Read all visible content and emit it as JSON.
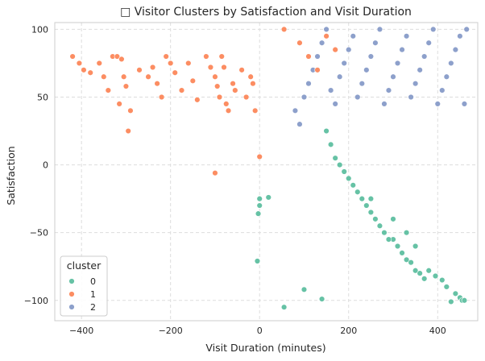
{
  "chart_data": {
    "type": "scatter",
    "title": "□ Visitor Clusters by Satisfaction and Visit Duration",
    "xlabel": "Visit Duration (minutes)",
    "ylabel": "Satisfaction",
    "xlim": [
      -460,
      490
    ],
    "ylim": [
      -115,
      105
    ],
    "xticks": [
      -400,
      -200,
      0,
      200,
      400
    ],
    "yticks": [
      -100,
      -50,
      0,
      50,
      100
    ],
    "grid": true,
    "legend": {
      "title": "cluster",
      "position": "bottom-left"
    },
    "series": [
      {
        "name": "0",
        "color": "#66c2a5",
        "points": [
          [
            -5,
            -71
          ],
          [
            55,
            -105
          ],
          [
            100,
            -92
          ],
          [
            140,
            -99
          ],
          [
            0,
            -25
          ],
          [
            0,
            -30
          ],
          [
            -3,
            -36
          ],
          [
            20,
            -24
          ],
          [
            380,
            -78
          ],
          [
            395,
            -82
          ],
          [
            410,
            -85
          ],
          [
            420,
            -90
          ],
          [
            440,
            -95
          ],
          [
            450,
            -98
          ],
          [
            455,
            -100
          ],
          [
            460,
            -100
          ],
          [
            430,
            -101
          ],
          [
            300,
            -55
          ],
          [
            310,
            -60
          ],
          [
            320,
            -65
          ],
          [
            330,
            -70
          ],
          [
            340,
            -72
          ],
          [
            350,
            -78
          ],
          [
            360,
            -80
          ],
          [
            370,
            -84
          ],
          [
            280,
            -50
          ],
          [
            290,
            -55
          ],
          [
            270,
            -45
          ],
          [
            260,
            -40
          ],
          [
            250,
            -35
          ],
          [
            240,
            -30
          ],
          [
            230,
            -25
          ],
          [
            220,
            -20
          ],
          [
            210,
            -15
          ],
          [
            200,
            -10
          ],
          [
            190,
            -5
          ],
          [
            180,
            0
          ],
          [
            170,
            5
          ],
          [
            160,
            15
          ],
          [
            150,
            25
          ],
          [
            250,
            -25
          ],
          [
            300,
            -40
          ],
          [
            350,
            -60
          ],
          [
            330,
            -50
          ]
        ]
      },
      {
        "name": "1",
        "color": "#fc8d62",
        "points": [
          [
            -420,
            80
          ],
          [
            -405,
            75
          ],
          [
            -395,
            70
          ],
          [
            -380,
            68
          ],
          [
            -360,
            75
          ],
          [
            -350,
            65
          ],
          [
            -340,
            55
          ],
          [
            -330,
            80
          ],
          [
            -320,
            80
          ],
          [
            -310,
            78
          ],
          [
            -305,
            65
          ],
          [
            -300,
            58
          ],
          [
            -315,
            45
          ],
          [
            -295,
            25
          ],
          [
            -290,
            40
          ],
          [
            -270,
            70
          ],
          [
            -250,
            65
          ],
          [
            -240,
            72
          ],
          [
            -230,
            60
          ],
          [
            -220,
            50
          ],
          [
            -210,
            80
          ],
          [
            -200,
            75
          ],
          [
            -190,
            68
          ],
          [
            -175,
            55
          ],
          [
            -160,
            75
          ],
          [
            -150,
            62
          ],
          [
            -140,
            48
          ],
          [
            -120,
            80
          ],
          [
            -110,
            72
          ],
          [
            -100,
            65
          ],
          [
            -95,
            58
          ],
          [
            -90,
            50
          ],
          [
            -85,
            80
          ],
          [
            -80,
            72
          ],
          [
            -75,
            45
          ],
          [
            -70,
            40
          ],
          [
            -60,
            60
          ],
          [
            -55,
            55
          ],
          [
            -40,
            70
          ],
          [
            -30,
            50
          ],
          [
            -20,
            65
          ],
          [
            -15,
            60
          ],
          [
            -10,
            40
          ],
          [
            -100,
            -6
          ],
          [
            0,
            6
          ],
          [
            55,
            100
          ],
          [
            90,
            90
          ],
          [
            110,
            80
          ],
          [
            130,
            70
          ],
          [
            150,
            95
          ],
          [
            170,
            85
          ]
        ]
      },
      {
        "name": "2",
        "color": "#8da0cb",
        "points": [
          [
            80,
            40
          ],
          [
            90,
            30
          ],
          [
            100,
            50
          ],
          [
            110,
            60
          ],
          [
            120,
            70
          ],
          [
            130,
            80
          ],
          [
            140,
            90
          ],
          [
            150,
            100
          ],
          [
            160,
            55
          ],
          [
            170,
            45
          ],
          [
            180,
            65
          ],
          [
            190,
            75
          ],
          [
            200,
            85
          ],
          [
            210,
            95
          ],
          [
            220,
            50
          ],
          [
            230,
            60
          ],
          [
            240,
            70
          ],
          [
            250,
            80
          ],
          [
            260,
            90
          ],
          [
            270,
            100
          ],
          [
            280,
            45
          ],
          [
            290,
            55
          ],
          [
            300,
            65
          ],
          [
            310,
            75
          ],
          [
            320,
            85
          ],
          [
            330,
            95
          ],
          [
            340,
            50
          ],
          [
            350,
            60
          ],
          [
            360,
            70
          ],
          [
            370,
            80
          ],
          [
            380,
            90
          ],
          [
            390,
            100
          ],
          [
            400,
            45
          ],
          [
            410,
            55
          ],
          [
            420,
            65
          ],
          [
            430,
            75
          ],
          [
            440,
            85
          ],
          [
            450,
            95
          ],
          [
            460,
            45
          ],
          [
            465,
            100
          ]
        ]
      }
    ]
  }
}
